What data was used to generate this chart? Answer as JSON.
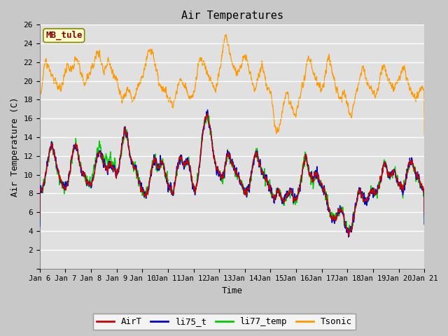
{
  "title": "Air Temperatures",
  "xlabel": "Time",
  "ylabel": "Air Temperature (C)",
  "ylim": [
    0,
    26
  ],
  "yticks": [
    0,
    2,
    4,
    6,
    8,
    10,
    12,
    14,
    16,
    18,
    20,
    22,
    24,
    26
  ],
  "xtick_labels": [
    "Jan 6",
    "Jan 7",
    "Jan 8",
    "Jan 9",
    "Jan 10",
    "Jan 11",
    "Jan 12",
    "Jan 13",
    "Jan 14",
    "Jan 15",
    "Jan 16",
    "Jan 17",
    "Jan 18",
    "Jan 19",
    "Jan 20",
    "Jan 21"
  ],
  "legend_labels": [
    "AirT",
    "li75_t",
    "li77_temp",
    "Tsonic"
  ],
  "line_colors": [
    "#cc0000",
    "#0000cc",
    "#00cc00",
    "#ff9900"
  ],
  "annotation_text": "MB_tule",
  "annotation_color": "#8b0000",
  "annotation_bg": "#ffffcc",
  "annotation_border": "#8b8b00"
}
